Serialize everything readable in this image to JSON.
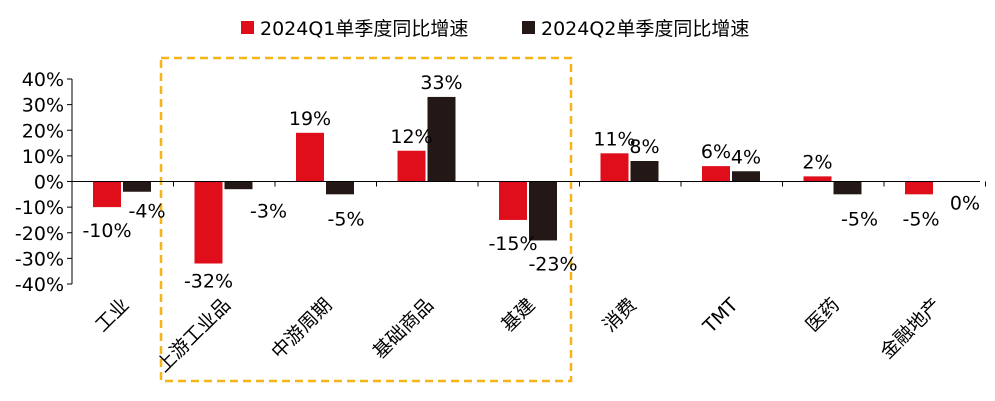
{
  "chart_data": {
    "type": "bar",
    "categories": [
      "工业",
      "上游工业品",
      "中游周期",
      "基础商品",
      "基建",
      "消费",
      "TMT",
      "医药",
      "金融地产"
    ],
    "series": [
      {
        "name": "2024Q1单季度同比增速",
        "color": "#e00e1a",
        "values": [
          -10,
          -32,
          19,
          12,
          -15,
          11,
          6,
          2,
          -5
        ]
      },
      {
        "name": "2024Q2单季度同比增速",
        "color": "#231815",
        "values": [
          -4,
          -3,
          -5,
          33,
          -23,
          8,
          4,
          -5,
          0
        ]
      }
    ],
    "data_labels": [
      [
        "-10%",
        "-32%",
        "19%",
        "12%",
        "-15%",
        "11%",
        "6%",
        "2%",
        "-5%"
      ],
      [
        "-4%",
        "-3%",
        "-5%",
        "33%",
        "-23%",
        "8%",
        "4%",
        "-5%",
        "0%"
      ]
    ],
    "y_ticks": [
      "40%",
      "30%",
      "20%",
      "10%",
      "0%",
      "-10%",
      "-20%",
      "-30%",
      "-40%"
    ],
    "ylim": [
      -40,
      40
    ],
    "highlight_color": "#f5b519",
    "legend_position": "top",
    "grid": false
  }
}
